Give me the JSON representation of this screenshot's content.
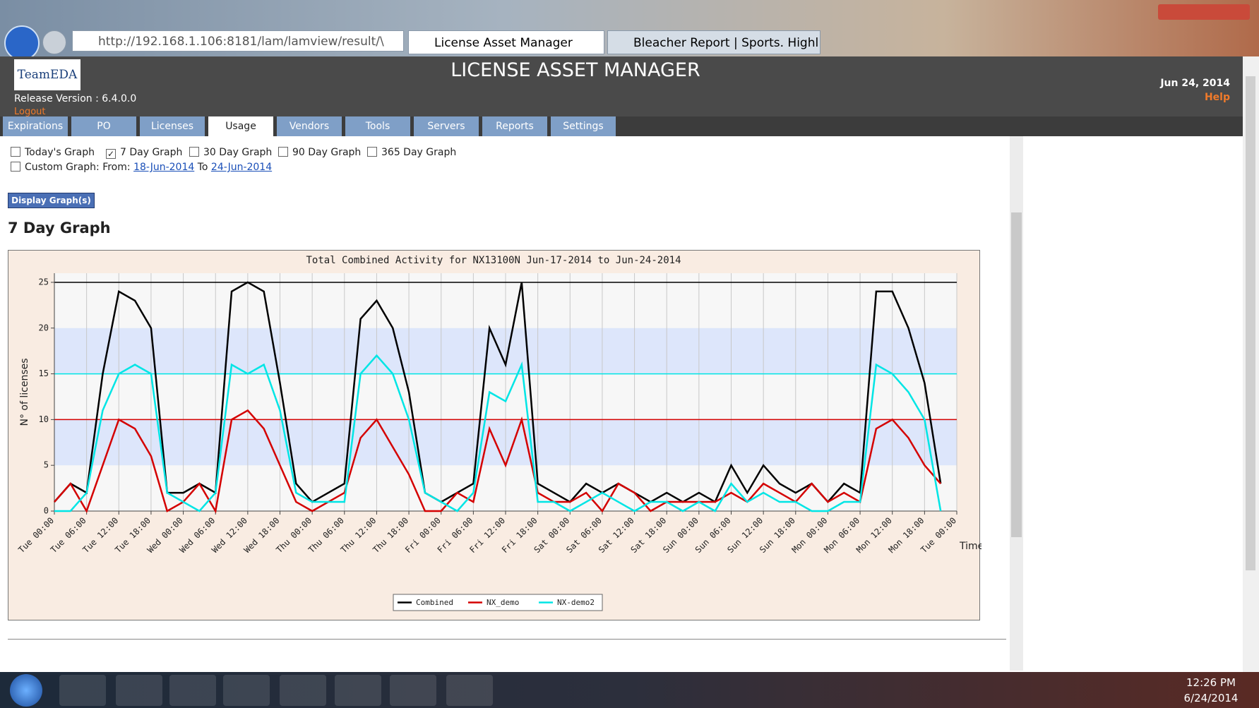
{
  "browser": {
    "url": "http://192.168.1.106:8181/lam/lamview/result/\\",
    "tabs": [
      "License Asset Manager",
      "Bleacher Report | Sports. Highl..."
    ]
  },
  "header": {
    "logo": "TeamEDA",
    "title": "LICENSE ASSET MANAGER",
    "version": "Release Version : 6.4.0.0",
    "logout": "Logout",
    "date": "Jun 24, 2014",
    "help": "Help"
  },
  "nav": {
    "tabs": [
      "Expirations",
      "PO",
      "Licenses",
      "Usage",
      "Vendors",
      "Tools",
      "Servers",
      "Reports",
      "Settings"
    ],
    "active": "Usage"
  },
  "options": [
    {
      "label": "Today's Graph",
      "checked": false
    },
    {
      "label": "7 Day Graph",
      "checked": true
    },
    {
      "label": "30 Day Graph",
      "checked": false
    },
    {
      "label": "90 Day Graph",
      "checked": false
    },
    {
      "label": "365 Day Graph",
      "checked": false
    }
  ],
  "custom": {
    "label": "Custom Graph: From:",
    "from": "18-Jun-2014",
    "to_label": "To",
    "to": "24-Jun-2014",
    "checked": false
  },
  "button": "Display Graph(s)",
  "section_title": "7 Day Graph",
  "chart_data": {
    "type": "line",
    "title": "Total Combined Activity for NX13100N Jun-17-2014 to Jun-24-2014",
    "xlabel": "Time",
    "ylabel": "N° of licenses",
    "x": [
      0,
      3,
      6,
      9,
      12,
      15,
      18,
      21,
      24,
      27,
      30,
      33,
      36,
      39,
      42,
      45,
      48,
      51,
      54,
      57,
      60,
      63,
      66,
      69,
      72,
      75,
      78,
      81,
      84,
      87,
      90,
      93,
      96,
      99,
      102,
      105,
      108,
      111,
      114,
      117,
      120,
      123,
      126,
      129,
      132,
      135,
      138,
      141,
      144,
      147,
      150,
      153,
      156,
      159,
      162,
      165
    ],
    "series": [
      {
        "name": "Combined",
        "color": "#000000",
        "values": [
          1,
          3,
          2,
          15,
          24,
          23,
          20,
          2,
          2,
          3,
          2,
          24,
          25,
          24,
          14,
          3,
          1,
          2,
          3,
          21,
          23,
          20,
          13,
          2,
          1,
          2,
          3,
          20,
          16,
          25,
          3,
          2,
          1,
          3,
          2,
          3,
          2,
          1,
          2,
          1,
          2,
          1,
          5,
          2,
          5,
          3,
          2,
          3,
          1,
          3,
          2,
          24,
          24,
          20,
          14,
          3
        ]
      },
      {
        "name": "NX_demo",
        "color": "#d40000",
        "values": [
          1,
          3,
          0,
          5,
          10,
          9,
          6,
          0,
          1,
          3,
          0,
          10,
          11,
          9,
          5,
          1,
          0,
          1,
          2,
          8,
          10,
          7,
          4,
          0,
          0,
          2,
          1,
          9,
          5,
          10,
          2,
          1,
          1,
          2,
          0,
          3,
          2,
          0,
          1,
          1,
          1,
          1,
          2,
          1,
          3,
          2,
          1,
          3,
          1,
          2,
          1,
          9,
          10,
          8,
          5,
          3
        ]
      },
      {
        "name": "NX-demo2",
        "color": "#00e5e5",
        "values": [
          0,
          0,
          2,
          11,
          15,
          16,
          15,
          2,
          1,
          0,
          2,
          16,
          15,
          16,
          11,
          2,
          1,
          1,
          1,
          15,
          17,
          15,
          10,
          2,
          1,
          0,
          2,
          13,
          12,
          16,
          1,
          1,
          0,
          1,
          2,
          1,
          0,
          1,
          1,
          0,
          1,
          0,
          3,
          1,
          2,
          1,
          1,
          0,
          0,
          1,
          1,
          16,
          15,
          13,
          10,
          0
        ]
      }
    ],
    "xlim": [
      0,
      168
    ],
    "xticks": [
      {
        "value": 0,
        "label": "Tue 00:00"
      },
      {
        "value": 6,
        "label": "Tue 06:00"
      },
      {
        "value": 12,
        "label": "Tue 12:00"
      },
      {
        "value": 18,
        "label": "Tue 18:00"
      },
      {
        "value": 24,
        "label": "Wed 00:00"
      },
      {
        "value": 30,
        "label": "Wed 06:00"
      },
      {
        "value": 36,
        "label": "Wed 12:00"
      },
      {
        "value": 42,
        "label": "Wed 18:00"
      },
      {
        "value": 48,
        "label": "Thu 00:00"
      },
      {
        "value": 54,
        "label": "Thu 06:00"
      },
      {
        "value": 60,
        "label": "Thu 12:00"
      },
      {
        "value": 66,
        "label": "Thu 18:00"
      },
      {
        "value": 72,
        "label": "Fri 00:00"
      },
      {
        "value": 78,
        "label": "Fri 06:00"
      },
      {
        "value": 84,
        "label": "Fri 12:00"
      },
      {
        "value": 90,
        "label": "Fri 18:00"
      },
      {
        "value": 96,
        "label": "Sat 00:00"
      },
      {
        "value": 102,
        "label": "Sat 06:00"
      },
      {
        "value": 108,
        "label": "Sat 12:00"
      },
      {
        "value": 114,
        "label": "Sat 18:00"
      },
      {
        "value": 120,
        "label": "Sun 00:00"
      },
      {
        "value": 126,
        "label": "Sun 06:00"
      },
      {
        "value": 132,
        "label": "Sun 12:00"
      },
      {
        "value": 138,
        "label": "Sun 18:00"
      },
      {
        "value": 144,
        "label": "Mon 00:00"
      },
      {
        "value": 150,
        "label": "Mon 06:00"
      },
      {
        "value": 156,
        "label": "Mon 12:00"
      },
      {
        "value": 162,
        "label": "Mon 18:00"
      },
      {
        "value": 168,
        "label": "Tue 00:00"
      }
    ],
    "ylim": [
      0,
      26
    ],
    "yticks": [
      0,
      5,
      10,
      15,
      20,
      25
    ],
    "bands": [
      [
        5,
        10
      ],
      [
        15,
        20
      ]
    ],
    "band_color": "#dde6fb",
    "reference_lines": [
      {
        "value": 10,
        "color": "#d40000"
      },
      {
        "value": 15,
        "color": "#00e5e5"
      },
      {
        "value": 25,
        "color": "#000000"
      }
    ],
    "grid": true,
    "legend": "bottom"
  },
  "taskbar": {
    "time": "12:26 PM",
    "date": "6/24/2014"
  }
}
